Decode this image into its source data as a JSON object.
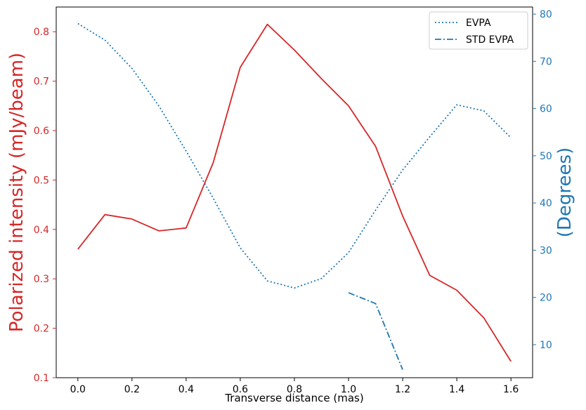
{
  "chart_data": {
    "type": "line",
    "title": "",
    "xlabel": "Transverse distance (mas)",
    "ylabel_left": "Polarized intensity (mJy/beam)",
    "ylabel_right": "(Degrees)",
    "xlim": [
      -0.08,
      1.68
    ],
    "ylim_left": [
      0.1,
      0.85
    ],
    "ylim_right": [
      3.0,
      81.5
    ],
    "x_ticks": [
      "0.0",
      "0.2",
      "0.4",
      "0.6",
      "0.8",
      "1.0",
      "1.2",
      "1.4",
      "1.6"
    ],
    "y_left_ticks": [
      "0.1",
      "0.2",
      "0.3",
      "0.4",
      "0.5",
      "0.6",
      "0.7",
      "0.8"
    ],
    "y_right_ticks": [
      "10",
      "20",
      "30",
      "40",
      "50",
      "60",
      "70",
      "80"
    ],
    "legend_position": "top-right",
    "colors": {
      "left": "#d62728",
      "right": "#1f77b4"
    },
    "series": [
      {
        "name": "Polarized intensity",
        "axis": "left",
        "style": "solid",
        "color": "#d62728",
        "x": [
          0.0,
          0.1,
          0.2,
          0.3,
          0.4,
          0.5,
          0.6,
          0.7,
          0.8,
          0.9,
          1.0,
          1.1,
          1.2,
          1.3,
          1.4,
          1.5,
          1.6
        ],
        "values": [
          0.36,
          0.43,
          0.421,
          0.397,
          0.403,
          0.535,
          0.728,
          0.815,
          0.763,
          0.705,
          0.65,
          0.568,
          0.427,
          0.307,
          0.277,
          0.221,
          0.133
        ]
      },
      {
        "name": "EVPA",
        "axis": "right",
        "style": "dotted",
        "color": "#1f77b4",
        "x": [
          0.0,
          0.1,
          0.2,
          0.3,
          0.4,
          0.5,
          0.6,
          0.7,
          0.8,
          0.9,
          1.0,
          1.1,
          1.2,
          1.3,
          1.4,
          1.5,
          1.6
        ],
        "values": [
          78.0,
          74.5,
          68.5,
          60.5,
          51.0,
          41.0,
          30.5,
          23.5,
          22.0,
          24.0,
          29.5,
          38.5,
          47.0,
          54.0,
          60.8,
          59.5,
          53.8
        ]
      },
      {
        "name": "STD EVPA",
        "axis": "right",
        "style": "dashdot",
        "color": "#1f77b4",
        "x": [
          1.0,
          1.1,
          1.2
        ],
        "values": [
          21.0,
          18.7,
          4.7
        ]
      }
    ]
  }
}
